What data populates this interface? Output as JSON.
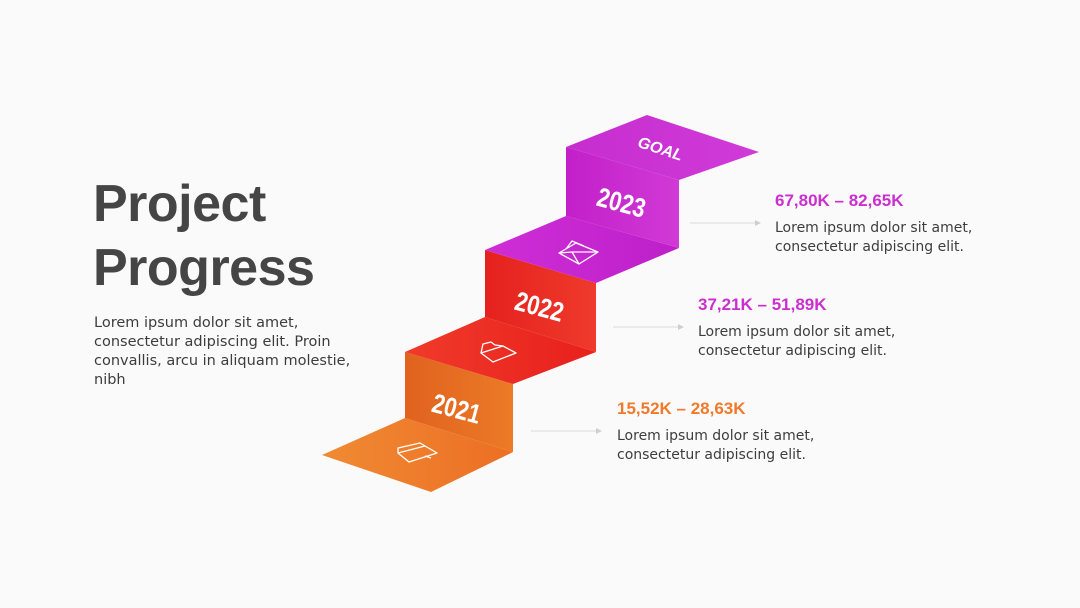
{
  "title": {
    "line1": "Project",
    "line2": "Progress"
  },
  "intro": "Lorem ipsum dolor sit amet, consectetur adipiscing elit. Proin convallis, arcu in aliquam molestie, nibh",
  "goal_label": "GOAL",
  "steps": [
    {
      "year": "2021",
      "range": "15,52K – 28,63K",
      "desc_line1": "Lorem ipsum dolor sit amet,",
      "desc_line2": "consectetur adipiscing elit.",
      "color": "#ee7324",
      "icon": "folder-icon"
    },
    {
      "year": "2022",
      "range": "37,21K – 51,89K",
      "desc_line1": "Lorem ipsum dolor sit amet,",
      "desc_line2": "consectetur adipiscing elit.",
      "color": "#e3231f",
      "icon": "folder-icon"
    },
    {
      "year": "2023",
      "range": "67,80K – 82,65K",
      "desc_line1": "Lorem ipsum dolor sit amet,",
      "desc_line2": "consectetur adipiscing elit.",
      "color": "#c424c9",
      "icon": "envelope-icon"
    }
  ],
  "colors": {
    "range_2021": "#f07a2a",
    "range_2022": "#cc2fd0",
    "range_2023": "#cc2fd0",
    "text": "#3d3d3d",
    "title": "#454545"
  }
}
